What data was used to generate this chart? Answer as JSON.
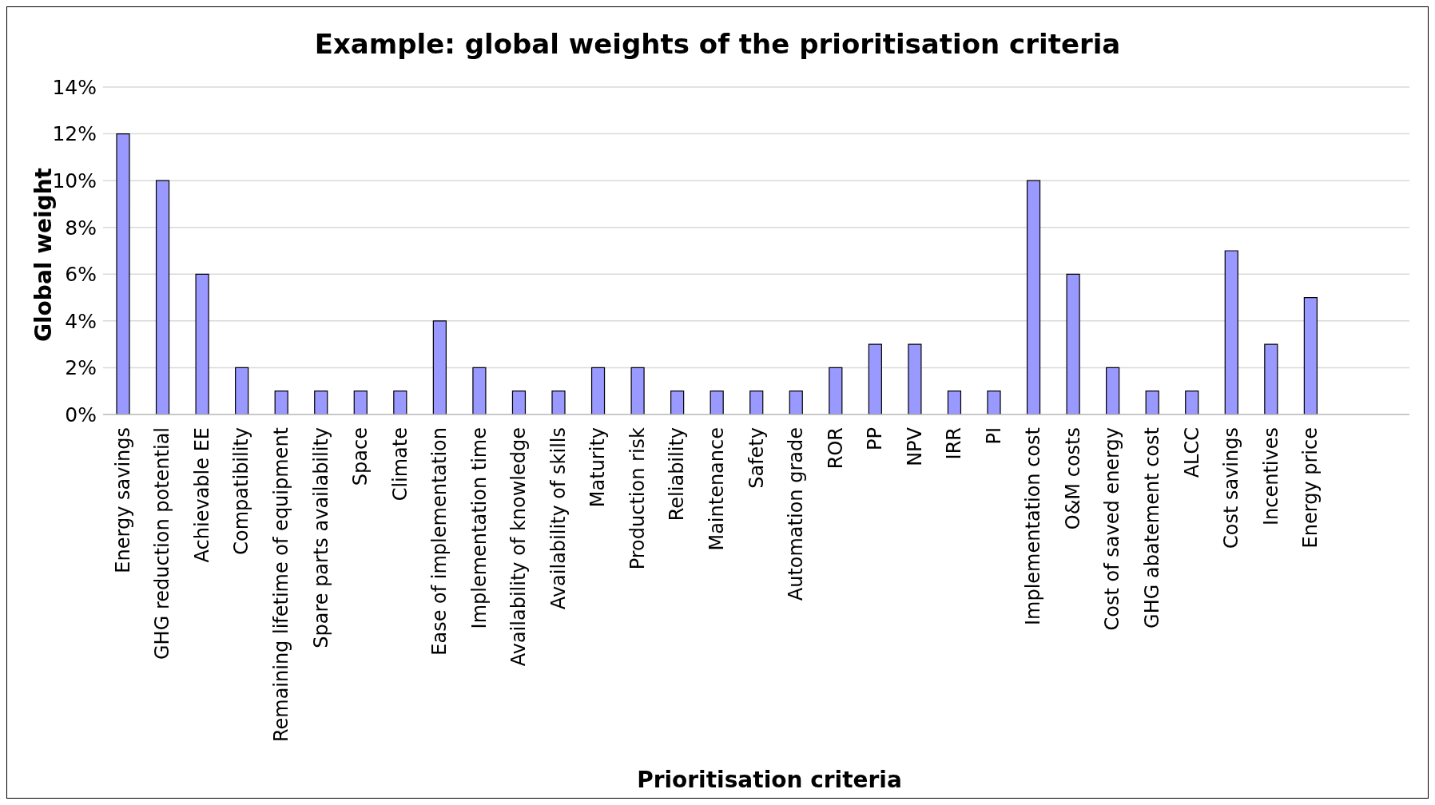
{
  "chart_data": {
    "type": "bar",
    "title": "Example: global weights of the prioritisation criteria",
    "xlabel": "Prioritisation criteria",
    "ylabel": "Global weight",
    "categories": [
      "Energy savings",
      "GHG reduction potential",
      "Achievable EE",
      "Compatibility",
      "Remaining lifetime of equipment",
      "Spare parts availability",
      "Space",
      "Climate",
      "Ease of implementation",
      "Implementation time",
      "Availability of knowledge",
      "Availability of skills",
      "Maturity",
      "Production risk",
      "Reliability",
      "Maintenance",
      "Safety",
      "Automation grade",
      "ROR",
      "PP",
      "NPV",
      "IRR",
      "PI",
      "Implementation cost",
      "O&M costs",
      "Cost of saved energy",
      "GHG abatement cost",
      "ALCC",
      "Cost savings",
      "Incentives",
      "Energy price",
      null,
      null
    ],
    "values": [
      12,
      10,
      6,
      2,
      1,
      1,
      1,
      1,
      4,
      2,
      1,
      1,
      2,
      2,
      1,
      1,
      1,
      1,
      2,
      3,
      3,
      1,
      1,
      10,
      6,
      2,
      1,
      1,
      7,
      3,
      5,
      null,
      null
    ],
    "color": "#9999ff",
    "ylim": [
      0,
      14
    ],
    "yticks": [
      {
        "value": 0,
        "label": "0%"
      },
      {
        "value": 2,
        "label": "2%"
      },
      {
        "value": 4,
        "label": "4%"
      },
      {
        "value": 6,
        "label": "6%"
      },
      {
        "value": 8,
        "label": "8%"
      },
      {
        "value": 10,
        "label": "10%"
      },
      {
        "value": 12,
        "label": "12%"
      },
      {
        "value": 14,
        "label": "14%"
      }
    ],
    "grid": "y"
  }
}
